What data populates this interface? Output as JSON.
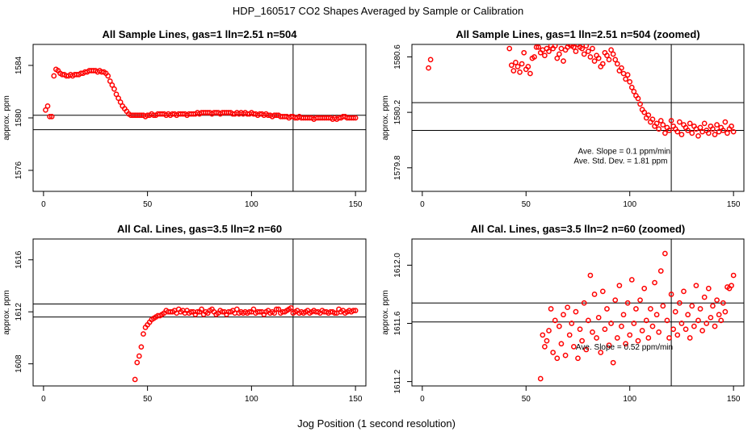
{
  "figure": {
    "title": "HDP_160517  CO2 Shapes Averaged by Sample or Calibration",
    "xlabel": "Jog Position (1 second resolution)"
  },
  "colors": {
    "points": "#ff0000",
    "lines": "#000000"
  },
  "chart_data": [
    {
      "id": "sample",
      "type": "scatter",
      "title": "All Sample Lines, gas=1 lln=2.51 n=504",
      "ylabel": "approx. ppm",
      "xlim": [
        -5,
        155
      ],
      "ylim": [
        1574.4,
        1585.6
      ],
      "xticks": [
        0,
        50,
        100,
        150
      ],
      "xticklabels": [
        "0",
        "50",
        "100",
        "150"
      ],
      "yticks": [
        1576,
        1580,
        1584
      ],
      "yticklabels": [
        "1576",
        "1580",
        "1584"
      ],
      "hlines": [
        1580.2,
        1579.1
      ],
      "vline": 120,
      "annotations": [],
      "x": [
        1,
        2,
        3,
        4,
        5,
        6,
        7,
        8,
        9,
        10,
        11,
        12,
        13,
        14,
        15,
        16,
        17,
        18,
        19,
        20,
        21,
        22,
        23,
        24,
        25,
        26,
        27,
        28,
        29,
        30,
        31,
        32,
        33,
        34,
        35,
        36,
        37,
        38,
        39,
        40,
        41,
        42,
        43,
        44,
        45,
        46,
        47,
        48,
        49,
        50,
        51,
        52,
        53,
        54,
        55,
        56,
        57,
        58,
        59,
        60,
        61,
        62,
        63,
        64,
        65,
        66,
        67,
        68,
        69,
        70,
        71,
        72,
        73,
        74,
        75,
        76,
        77,
        78,
        79,
        80,
        81,
        82,
        83,
        84,
        85,
        86,
        87,
        88,
        89,
        90,
        91,
        92,
        93,
        94,
        95,
        96,
        97,
        98,
        99,
        100,
        101,
        102,
        103,
        104,
        105,
        106,
        107,
        108,
        109,
        110,
        111,
        112,
        113,
        114,
        115,
        116,
        117,
        118,
        119,
        120,
        121,
        122,
        123,
        124,
        125,
        126,
        127,
        128,
        129,
        130,
        131,
        132,
        133,
        134,
        135,
        136,
        137,
        138,
        139,
        140,
        141,
        142,
        143,
        144,
        145,
        146,
        147,
        148,
        149,
        150
      ],
      "y": [
        1580.6,
        1580.9,
        1580.1,
        1580.1,
        1583.2,
        1583.7,
        1583.6,
        1583.4,
        1583.3,
        1583.3,
        1583.2,
        1583.2,
        1583.3,
        1583.2,
        1583.3,
        1583.3,
        1583.3,
        1583.4,
        1583.4,
        1583.5,
        1583.5,
        1583.6,
        1583.6,
        1583.6,
        1583.6,
        1583.5,
        1583.6,
        1583.5,
        1583.5,
        1583.4,
        1583.2,
        1582.8,
        1582.5,
        1582.2,
        1581.8,
        1581.5,
        1581.2,
        1580.9,
        1580.7,
        1580.5,
        1580.3,
        1580.2,
        1580.2,
        1580.2,
        1580.2,
        1580.2,
        1580.2,
        1580.2,
        1580.1,
        1580.2,
        1580.2,
        1580.3,
        1580.2,
        1580.2,
        1580.3,
        1580.3,
        1580.3,
        1580.3,
        1580.2,
        1580.3,
        1580.2,
        1580.3,
        1580.3,
        1580.2,
        1580.3,
        1580.3,
        1580.3,
        1580.3,
        1580.2,
        1580.3,
        1580.3,
        1580.3,
        1580.3,
        1580.4,
        1580.3,
        1580.4,
        1580.4,
        1580.4,
        1580.4,
        1580.4,
        1580.3,
        1580.4,
        1580.4,
        1580.4,
        1580.3,
        1580.4,
        1580.4,
        1580.4,
        1580.4,
        1580.4,
        1580.3,
        1580.3,
        1580.4,
        1580.3,
        1580.4,
        1580.3,
        1580.4,
        1580.3,
        1580.3,
        1580.4,
        1580.3,
        1580.3,
        1580.2,
        1580.3,
        1580.3,
        1580.2,
        1580.3,
        1580.2,
        1580.2,
        1580.1,
        1580.2,
        1580.2,
        1580.2,
        1580.1,
        1580.1,
        1580.1,
        1580.1,
        1580.0,
        1580.1,
        1580.1,
        1580.0,
        1580.0,
        1580.1,
        1580.0,
        1580.0,
        1580.0,
        1580.0,
        1580.0,
        1580.0,
        1579.9,
        1580.0,
        1580.0,
        1580.0,
        1580.0,
        1580.0,
        1580.0,
        1580.0,
        1580.0,
        1579.9,
        1580.0,
        1579.9,
        1580.0,
        1580.0,
        1580.1,
        1580.1,
        1580.0,
        1580.0,
        1580.0,
        1580.0,
        1580.0
      ]
    },
    {
      "id": "sample-zoom",
      "type": "scatter",
      "title": "All Sample Lines, gas=1 lln=2.51 n=504 (zoomed)",
      "ylabel": "approx. ppm",
      "xlim": [
        -5,
        155
      ],
      "ylim": [
        1579.63,
        1580.69
      ],
      "xticks": [
        0,
        50,
        100,
        150
      ],
      "xticklabels": [
        "0",
        "50",
        "100",
        "150"
      ],
      "yticks": [
        1579.8,
        1580.2,
        1580.6
      ],
      "yticklabels": [
        "1579.8",
        "1580.2",
        "1580.6"
      ],
      "hlines": [
        1580.27,
        1580.07
      ],
      "vline": 120,
      "annotations": [
        {
          "text": "Ave. Slope =  0.1  ppm/min",
          "x": 75,
          "y": 1579.9
        },
        {
          "text": "Ave. Std. Dev. =  1.81  ppm",
          "x": 73,
          "y": 1579.83
        }
      ],
      "x": [
        3,
        4,
        42,
        43,
        44,
        45,
        46,
        47,
        48,
        49,
        50,
        51,
        52,
        53,
        54,
        55,
        56,
        57,
        58,
        59,
        60,
        61,
        62,
        63,
        64,
        65,
        66,
        67,
        68,
        69,
        70,
        71,
        72,
        73,
        74,
        75,
        76,
        77,
        78,
        79,
        80,
        81,
        82,
        83,
        84,
        85,
        86,
        87,
        88,
        89,
        90,
        91,
        92,
        93,
        94,
        95,
        96,
        97,
        98,
        99,
        100,
        101,
        102,
        103,
        104,
        105,
        106,
        107,
        108,
        109,
        110,
        111,
        112,
        113,
        114,
        115,
        116,
        117,
        118,
        119,
        120,
        121,
        122,
        123,
        124,
        125,
        126,
        127,
        128,
        129,
        130,
        131,
        132,
        133,
        134,
        135,
        136,
        137,
        138,
        139,
        140,
        141,
        142,
        143,
        144,
        145,
        146,
        147,
        148,
        149,
        150
      ],
      "y": [
        1580.52,
        1580.58,
        1580.66,
        1580.54,
        1580.5,
        1580.56,
        1580.53,
        1580.49,
        1580.55,
        1580.63,
        1580.51,
        1580.53,
        1580.48,
        1580.59,
        1580.6,
        1580.67,
        1580.67,
        1580.63,
        1580.65,
        1580.61,
        1580.66,
        1580.64,
        1580.68,
        1580.66,
        1580.68,
        1580.59,
        1580.62,
        1580.66,
        1580.57,
        1580.65,
        1580.67,
        1580.69,
        1580.68,
        1580.67,
        1580.64,
        1580.69,
        1580.67,
        1580.66,
        1580.62,
        1580.68,
        1580.64,
        1580.6,
        1580.66,
        1580.57,
        1580.61,
        1580.59,
        1580.53,
        1580.55,
        1580.63,
        1580.61,
        1580.58,
        1580.65,
        1580.62,
        1580.58,
        1580.55,
        1580.5,
        1580.52,
        1580.48,
        1580.44,
        1580.47,
        1580.42,
        1580.38,
        1580.35,
        1580.32,
        1580.3,
        1580.26,
        1580.22,
        1580.2,
        1580.16,
        1580.18,
        1580.13,
        1580.15,
        1580.1,
        1580.12,
        1580.08,
        1580.14,
        1580.11,
        1580.05,
        1580.09,
        1580.07,
        1580.14,
        1580.1,
        1580.08,
        1580.06,
        1580.13,
        1580.04,
        1580.11,
        1580.09,
        1580.07,
        1580.12,
        1580.05,
        1580.1,
        1580.08,
        1580.03,
        1580.09,
        1580.06,
        1580.12,
        1580.07,
        1580.05,
        1580.1,
        1580.08,
        1580.04,
        1580.11,
        1580.06,
        1580.09,
        1580.07,
        1580.13,
        1580.05,
        1580.08,
        1580.1,
        1580.06
      ]
    },
    {
      "id": "cal",
      "type": "scatter",
      "title": "All Cal. Lines, gas=3.5 lln=2 n=60",
      "ylabel": "approx. ppm",
      "xlim": [
        -5,
        155
      ],
      "ylim": [
        1606.3,
        1617.6
      ],
      "xticks": [
        0,
        50,
        100,
        150
      ],
      "xticklabels": [
        "0",
        "50",
        "100",
        "150"
      ],
      "yticks": [
        1608,
        1612,
        1616
      ],
      "yticklabels": [
        "1608",
        "1612",
        "1616"
      ],
      "hlines": [
        1612.6,
        1611.6
      ],
      "vline": 120,
      "annotations": [],
      "x": [
        44,
        45,
        46,
        47,
        48,
        49,
        50,
        51,
        52,
        53,
        54,
        55,
        56,
        57,
        58,
        59,
        60,
        61,
        62,
        63,
        64,
        65,
        66,
        67,
        68,
        69,
        70,
        71,
        72,
        73,
        74,
        75,
        76,
        77,
        78,
        79,
        80,
        81,
        82,
        83,
        84,
        85,
        86,
        87,
        88,
        89,
        90,
        91,
        92,
        93,
        94,
        95,
        96,
        97,
        98,
        99,
        100,
        101,
        102,
        103,
        104,
        105,
        106,
        107,
        108,
        109,
        110,
        111,
        112,
        113,
        114,
        115,
        116,
        117,
        118,
        119,
        120,
        121,
        122,
        123,
        124,
        125,
        126,
        127,
        128,
        129,
        130,
        131,
        132,
        133,
        134,
        135,
        136,
        137,
        138,
        139,
        140,
        141,
        142,
        143,
        144,
        145,
        146,
        147,
        148,
        149,
        150
      ],
      "y": [
        1606.8,
        1608.1,
        1608.6,
        1609.3,
        1610.3,
        1610.8,
        1611.0,
        1611.2,
        1611.4,
        1611.5,
        1611.6,
        1611.7,
        1611.7,
        1611.8,
        1611.9,
        1612.1,
        1612.0,
        1612.0,
        1612.0,
        1612.1,
        1611.9,
        1612.2,
        1612.0,
        1612.1,
        1611.9,
        1612.1,
        1611.9,
        1612.0,
        1612.0,
        1611.8,
        1612.0,
        1612.0,
        1612.2,
        1611.8,
        1612.0,
        1611.9,
        1612.1,
        1612.2,
        1612.0,
        1611.8,
        1611.9,
        1612.1,
        1612.0,
        1612.0,
        1611.8,
        1612.0,
        1612.0,
        1612.1,
        1611.9,
        1612.2,
        1611.9,
        1612.0,
        1611.9,
        1612.0,
        1611.9,
        1612.0,
        1612.0,
        1612.2,
        1611.9,
        1612.0,
        1612.0,
        1612.0,
        1611.8,
        1612.0,
        1612.1,
        1611.9,
        1612.0,
        1611.9,
        1612.2,
        1612.2,
        1611.9,
        1612.0,
        1612.0,
        1612.1,
        1612.2,
        1612.3,
        1611.9,
        1612.0,
        1612.1,
        1611.9,
        1612.0,
        1611.9,
        1612.0,
        1612.1,
        1611.9,
        1612.0,
        1612.1,
        1612.0,
        1612.0,
        1611.9,
        1612.1,
        1612.0,
        1612.0,
        1611.9,
        1612.0,
        1612.0,
        1611.9,
        1611.9,
        1612.2,
        1612.0,
        1612.1,
        1611.9,
        1612.0,
        1612.1,
        1612.0,
        1612.1,
        1612.1
      ]
    },
    {
      "id": "cal-zoom",
      "type": "scatter",
      "title": "All Cal. Lines, gas=3.5 lln=2 n=60 (zoomed)",
      "ylabel": "approx. ppm",
      "xlim": [
        -5,
        155
      ],
      "ylim": [
        1611.17,
        1612.18
      ],
      "xticks": [
        0,
        50,
        100,
        150
      ],
      "xticklabels": [
        "0",
        "50",
        "100",
        "150"
      ],
      "yticks": [
        1611.2,
        1611.6,
        1612.0
      ],
      "yticklabels": [
        "1611.2",
        "1611.6",
        "1612.0"
      ],
      "hlines": [
        1611.74,
        1611.61
      ],
      "vline": 120,
      "annotations": [
        {
          "text": "Ave. Slope =  0.52  ppm/min",
          "x": 74,
          "y": 1611.42
        }
      ],
      "x": [
        57,
        58,
        59,
        60,
        61,
        62,
        63,
        64,
        65,
        66,
        67,
        68,
        69,
        70,
        71,
        72,
        73,
        74,
        75,
        76,
        77,
        78,
        79,
        80,
        81,
        82,
        83,
        84,
        85,
        86,
        87,
        88,
        89,
        90,
        91,
        92,
        93,
        94,
        95,
        96,
        97,
        98,
        99,
        100,
        101,
        102,
        103,
        104,
        105,
        106,
        107,
        108,
        109,
        110,
        111,
        112,
        113,
        114,
        115,
        116,
        117,
        118,
        119,
        120,
        121,
        122,
        123,
        124,
        125,
        126,
        127,
        128,
        129,
        130,
        131,
        132,
        133,
        134,
        135,
        136,
        137,
        138,
        139,
        140,
        141,
        142,
        143,
        144,
        145,
        146,
        147,
        148,
        149,
        150
      ],
      "y": [
        1611.22,
        1611.52,
        1611.44,
        1611.48,
        1611.55,
        1611.7,
        1611.4,
        1611.62,
        1611.36,
        1611.58,
        1611.46,
        1611.66,
        1611.38,
        1611.71,
        1611.52,
        1611.6,
        1611.44,
        1611.68,
        1611.36,
        1611.56,
        1611.48,
        1611.74,
        1611.42,
        1611.62,
        1611.93,
        1611.54,
        1611.8,
        1611.5,
        1611.64,
        1611.4,
        1611.82,
        1611.56,
        1611.7,
        1611.45,
        1611.6,
        1611.33,
        1611.76,
        1611.5,
        1611.86,
        1611.58,
        1611.66,
        1611.46,
        1611.74,
        1611.52,
        1611.9,
        1611.6,
        1611.7,
        1611.48,
        1611.76,
        1611.55,
        1611.84,
        1611.62,
        1611.5,
        1611.7,
        1611.58,
        1611.88,
        1611.66,
        1611.54,
        1611.96,
        1611.72,
        1612.08,
        1611.62,
        1611.5,
        1611.8,
        1611.56,
        1611.68,
        1611.52,
        1611.74,
        1611.6,
        1611.82,
        1611.56,
        1611.66,
        1611.5,
        1611.72,
        1611.58,
        1611.86,
        1611.62,
        1611.7,
        1611.55,
        1611.78,
        1611.6,
        1611.84,
        1611.64,
        1611.72,
        1611.58,
        1611.76,
        1611.66,
        1611.62,
        1611.74,
        1611.68,
        1611.85,
        1611.84,
        1611.86,
        1611.93
      ]
    }
  ]
}
